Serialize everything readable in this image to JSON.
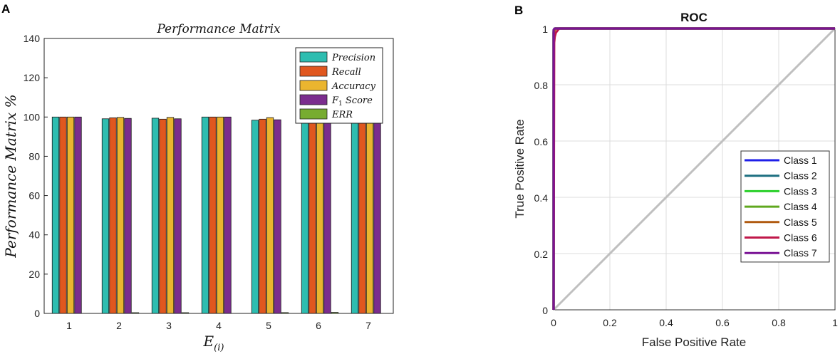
{
  "panels": {
    "a_label": "A",
    "b_label": "B"
  },
  "chart_data": [
    {
      "type": "bar",
      "title": "Performance Matrix",
      "xlabel_base": "E",
      "xlabel_sub": "(i)",
      "ylabel": "Performance Matrix %",
      "ylim": [
        0,
        140
      ],
      "yticks": [
        0,
        20,
        40,
        60,
        80,
        100,
        120,
        140
      ],
      "categories": [
        "1",
        "2",
        "3",
        "4",
        "5",
        "6",
        "7"
      ],
      "legend_position": "top-right",
      "series": [
        {
          "name": "Precision",
          "color": "#2ebdb0",
          "values": [
            100,
            99.1,
            99.4,
            100,
            98.4,
            99.0,
            100
          ]
        },
        {
          "name": "Recall",
          "color": "#e0571f",
          "values": [
            100,
            99.6,
            98.9,
            100,
            98.9,
            98.4,
            100
          ]
        },
        {
          "name": "Accuracy",
          "color": "#eab52f",
          "values": [
            100,
            99.8,
            99.8,
            100,
            99.7,
            99.5,
            100
          ]
        },
        {
          "name": "F1 Score",
          "legend_base": "F",
          "legend_sub": "1",
          "legend_rest": " Score",
          "color": "#7b2d8e",
          "values": [
            100,
            99.3,
            99.1,
            100,
            98.6,
            98.7,
            100
          ]
        },
        {
          "name": "ERR",
          "color": "#77ac30",
          "values": [
            0,
            0.3,
            0.2,
            0,
            0.4,
            0.5,
            0
          ]
        }
      ]
    },
    {
      "type": "line",
      "title": "ROC",
      "xlabel": "False Positive Rate",
      "ylabel": "True Positive Rate",
      "xlim": [
        0,
        1
      ],
      "ylim": [
        0,
        1
      ],
      "xticks": [
        0,
        0.2,
        0.4,
        0.6,
        0.8,
        1
      ],
      "yticks": [
        0,
        0.2,
        0.4,
        0.6,
        0.8,
        1
      ],
      "legend_position": "right",
      "grid": true,
      "diagonal_color": "#c0c0c0",
      "series": [
        {
          "name": "Class 1",
          "color": "#1f1fe8",
          "x": [
            0,
            0,
            0.005,
            1
          ],
          "y": [
            0,
            0.99,
            1,
            1
          ]
        },
        {
          "name": "Class 2",
          "color": "#1b6e80",
          "x": [
            0,
            0,
            0.006,
            1
          ],
          "y": [
            0,
            0.985,
            1,
            1
          ]
        },
        {
          "name": "Class 3",
          "color": "#2ad02a",
          "x": [
            0,
            0,
            0.004,
            1
          ],
          "y": [
            0,
            0.995,
            1,
            1
          ]
        },
        {
          "name": "Class 4",
          "color": "#5fa81e",
          "x": [
            0,
            0,
            0.005,
            1
          ],
          "y": [
            0,
            0.99,
            1,
            1
          ]
        },
        {
          "name": "Class 5",
          "color": "#b05a10",
          "x": [
            0,
            0,
            0.006,
            1
          ],
          "y": [
            0,
            0.985,
            1,
            1
          ]
        },
        {
          "name": "Class 6",
          "color": "#c0184a",
          "x": [
            0,
            0.002,
            0.004,
            0.008,
            0.012,
            0.02,
            1
          ],
          "y": [
            0,
            0.95,
            0.97,
            0.985,
            0.99,
            1,
            1
          ]
        },
        {
          "name": "Class 7",
          "color": "#7a1495",
          "x": [
            0,
            0,
            0.003,
            1
          ],
          "y": [
            0,
            0.995,
            1,
            1
          ]
        }
      ]
    }
  ]
}
